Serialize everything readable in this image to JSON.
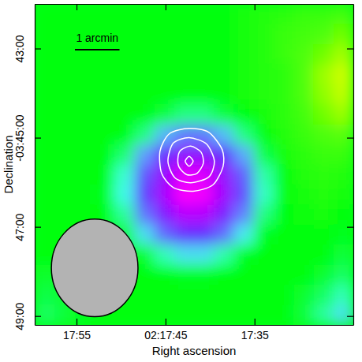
{
  "chart_data": {
    "type": "heatmap",
    "x_label": "Right ascension",
    "y_label": "Declination",
    "xlim": [
      59.7,
      23.9
    ],
    "ylim": [
      -229.2,
      -222.0
    ],
    "xticks": [
      {
        "value": 55,
        "label": "17:55"
      },
      {
        "value": 45,
        "label": "02:17:45"
      },
      {
        "value": 35,
        "label": "17:35"
      }
    ],
    "yticks": [
      {
        "value": -223,
        "label": "43:00"
      },
      {
        "value": -225,
        "label": "-03:45:00"
      },
      {
        "value": -227,
        "label": "47:00"
      },
      {
        "value": -229,
        "label": "49:00"
      }
    ],
    "zlim": [
      -1,
      0.3
    ],
    "cells": [
      [
        0,
        0,
        0,
        0,
        0,
        0,
        0,
        0,
        0,
        0,
        0.02,
        0.03,
        0.04,
        0.05,
        0.05,
        0.06
      ],
      [
        0,
        0,
        0,
        0,
        0,
        0,
        0,
        0,
        0,
        0,
        0.02,
        0.03,
        0.05,
        0.06,
        0.07,
        0.1
      ],
      [
        0,
        0,
        0,
        0,
        0,
        0,
        0,
        0,
        0,
        0,
        0.02,
        0.03,
        0.05,
        0.07,
        0.1,
        0.15
      ],
      [
        0,
        0,
        0,
        0,
        0,
        0,
        0,
        0,
        0,
        0,
        0.02,
        0.03,
        0.04,
        0.07,
        0.14,
        0.22
      ],
      [
        0,
        0,
        0,
        0,
        0,
        0,
        0,
        0,
        0,
        0,
        0.02,
        0.03,
        0.04,
        0.07,
        0.13,
        0.2
      ],
      [
        0,
        0,
        0,
        0,
        0,
        0,
        -0.03,
        -0.08,
        -0.08,
        -0.03,
        0,
        0.02,
        0.04,
        0.06,
        0.1,
        0.14
      ],
      [
        0,
        0,
        0,
        0,
        0,
        -0.08,
        -0.26,
        -0.37,
        -0.37,
        -0.25,
        -0.08,
        0,
        0.03,
        0.05,
        0.07,
        0.08
      ],
      [
        0,
        0,
        0,
        0,
        -0.07,
        -0.3,
        -0.54,
        -0.68,
        -0.67,
        -0.51,
        -0.28,
        -0.04,
        0.02,
        0.04,
        0.05,
        0.05
      ],
      [
        0,
        0,
        0,
        0,
        -0.14,
        -0.44,
        -0.72,
        -0.93,
        -0.91,
        -0.71,
        -0.42,
        -0.11,
        0,
        0.03,
        0.04,
        0.03
      ],
      [
        0,
        0,
        0,
        -0.01,
        -0.16,
        -0.48,
        -0.77,
        -0.99,
        -0.97,
        -0.75,
        -0.45,
        -0.13,
        0,
        0.02,
        0.03,
        0.02
      ],
      [
        0,
        0,
        0,
        0,
        -0.1,
        -0.38,
        -0.63,
        -0.81,
        -0.8,
        -0.61,
        -0.35,
        -0.08,
        0,
        0.01,
        0.02,
        0
      ],
      [
        0,
        0,
        0,
        0,
        -0.02,
        -0.2,
        -0.4,
        -0.52,
        -0.51,
        -0.39,
        -0.18,
        -0.01,
        0,
        0,
        0,
        -0.01
      ],
      [
        0,
        0,
        0,
        0,
        0,
        -0.02,
        -0.12,
        -0.2,
        -0.2,
        -0.11,
        -0.01,
        0,
        0,
        0,
        0,
        -0.03
      ],
      [
        -0.02,
        -0.01,
        0,
        0,
        0,
        0,
        0,
        -0.01,
        -0.01,
        0,
        0,
        0,
        0,
        0,
        -0.02,
        -0.06
      ],
      [
        -0.04,
        -0.02,
        0,
        0,
        0,
        0,
        0,
        0,
        0,
        0,
        0,
        0,
        0,
        -0.02,
        -0.06,
        -0.12
      ],
      [
        -0.06,
        -0.03,
        -0.01,
        0,
        0,
        0,
        0,
        0,
        0,
        0,
        0,
        0,
        0,
        -0.03,
        -0.1,
        -0.2
      ]
    ],
    "contours": [
      {
        "x": [
          44.56,
          42.35,
          40.13,
          38.63,
          38.54,
          39.69,
          41.9,
          44.12,
          45.44,
          45.62
        ],
        "y": [
          -224.91,
          -224.79,
          -224.88,
          -225.27,
          -225.65,
          -226.06,
          -226.2,
          -226.12,
          -225.8,
          -225.3
        ]
      },
      {
        "x": [
          44.12,
          42.35,
          40.4,
          39.51,
          40.13,
          42.17,
          43.94,
          44.73
        ],
        "y": [
          -225.12,
          -225.0,
          -225.14,
          -225.53,
          -225.88,
          -226.01,
          -225.9,
          -225.53
        ]
      },
      {
        "x": [
          43.23,
          42.17,
          41.02,
          40.75,
          41.46,
          42.61,
          43.5,
          43.58
        ],
        "y": [
          -225.27,
          -225.19,
          -225.32,
          -225.57,
          -225.8,
          -225.83,
          -225.65,
          -225.41
        ]
      },
      {
        "x": [
          42.35,
          41.9,
          42.35,
          42.79
        ],
        "y": [
          -225.42,
          -225.53,
          -225.64,
          -225.53
        ]
      }
    ],
    "beam": {
      "x": 52.96,
      "y": -227.92,
      "width": 9.73,
      "height": 2.19
    },
    "scale_bar": {
      "label": "1 arcmin",
      "length": 1
    }
  }
}
